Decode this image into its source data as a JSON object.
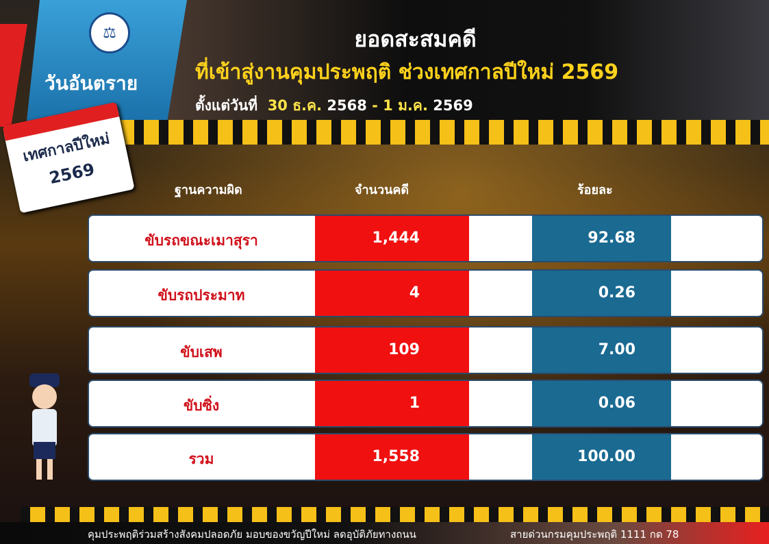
{
  "header": {
    "brand": "วันอันตราย",
    "title": "ยอดสะสมคดี",
    "subtitle": "ที่เข้าสู่งานคุมประพฤติ ช่วงเทศกาลปีใหม่ 2569",
    "date_prefix": "ตั้งแต่วันที่",
    "date_start_day": "30 ธ.ค.",
    "date_start_year": "2568",
    "date_sep": "-",
    "date_end_day": "1 ม.ค.",
    "date_end_year": "2569"
  },
  "calendar": {
    "line1": "เทศกาลปีใหม่",
    "line2": "2569"
  },
  "table": {
    "columns": [
      "ฐานความผิด",
      "จำนวนคดี",
      "ร้อยละ"
    ],
    "rows": [
      {
        "label": "ขับรถขณะเมาสุรา",
        "count": "1,444",
        "percent": "92.68"
      },
      {
        "label": "ขับรถประมาท",
        "count": "4",
        "percent": "0.26"
      },
      {
        "label": "ขับเสพ",
        "count": "109",
        "percent": "7.00"
      },
      {
        "label": "ขับซิ่ง",
        "count": "1",
        "percent": "0.06"
      },
      {
        "label": "รวม",
        "count": "1,558",
        "percent": "100.00"
      }
    ]
  },
  "footer": {
    "slogan": "คุมประพฤติร่วมสร้างสังคมปลอดภัย มอบของขวัญปีใหม่ ลดอุบัติภัยทางถนน",
    "hotline": "สายด่วนกรมคุมประพฤติ 1111 กด 78"
  },
  "colors": {
    "count_cell": "#f01010",
    "percent_cell": "#1a6a92",
    "title_yellow": "#ffd21c"
  }
}
